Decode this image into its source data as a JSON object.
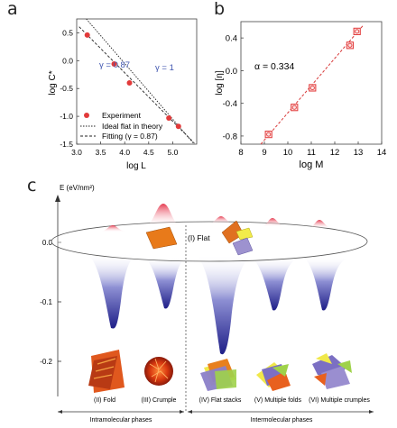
{
  "panels": {
    "a": "a",
    "b": "b",
    "c": "c"
  },
  "chart_data": [
    {
      "type": "scatter",
      "xlabel": "log L",
      "ylabel": "log C*",
      "xlim": [
        3.0,
        5.5
      ],
      "ylim": [
        -1.5,
        0.75
      ],
      "xticks": [
        "3.0",
        "3.5",
        "4.0",
        "4.5",
        "5.0"
      ],
      "yticks": [
        "0.5",
        "0.0",
        "-0.5",
        "-1.0",
        "-1.5"
      ],
      "annotations": {
        "fit": "γ = 0.87",
        "ideal": "γ = 1"
      },
      "series": [
        {
          "name": "Experiment",
          "x": [
            3.22,
            3.78,
            4.1,
            4.92,
            5.12
          ],
          "y": [
            0.46,
            -0.06,
            -0.4,
            -1.03,
            -1.18
          ]
        },
        {
          "name": "Ideal flat in theory",
          "x": [
            3.2,
            5.45
          ],
          "y": [
            0.75,
            -1.5
          ]
        },
        {
          "name": "Fitting (γ = 0.87)",
          "x": [
            3.05,
            5.45
          ],
          "y": [
            0.61,
            -1.48
          ]
        }
      ]
    },
    {
      "type": "scatter",
      "xlabel": "log M",
      "ylabel": "log [η]",
      "xlim": [
        8,
        14
      ],
      "ylim": [
        -0.9,
        0.6
      ],
      "xticks": [
        "8",
        "9",
        "10",
        "11",
        "12",
        "13",
        "14"
      ],
      "yticks": [
        "0.4",
        "0.0",
        "-0.4",
        "-0.8"
      ],
      "annotation": "α = 0.334",
      "series": [
        {
          "name": "data",
          "x": [
            9.18,
            10.28,
            11.05,
            12.65,
            12.95
          ],
          "y": [
            -0.78,
            -0.45,
            -0.21,
            0.31,
            0.48
          ]
        },
        {
          "name": "fit",
          "x": [
            8.85,
            13.2
          ],
          "y": [
            -0.9,
            0.55
          ]
        }
      ]
    },
    {
      "type": "other",
      "ylabel": "E (eV/nm²)",
      "yticks": [
        "0.0",
        "-0.1",
        "-0.2"
      ],
      "ylim": [
        -0.22,
        0.05
      ],
      "wells_depth": [
        -0.145,
        -0.1,
        -0.19,
        -0.1,
        -0.1
      ],
      "phases": [
        "(I) Flat",
        "(II) Fold",
        "(III) Crumple",
        "(IV) Flat stacks",
        "(V) Multiple folds",
        "(VI) Multiple crumples"
      ],
      "groups": [
        "Intramolecular phases",
        "Intermolecular phases"
      ]
    }
  ],
  "colors": {
    "marker": "#e23a3a",
    "panel_b_line": "#d83a3a",
    "well_top": "#ffffff",
    "well_bottom": "#24248f",
    "peak": "#e8505f"
  }
}
